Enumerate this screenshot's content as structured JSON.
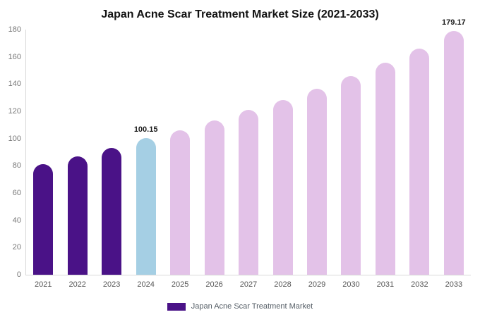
{
  "title": "Japan Acne Scar Treatment Market Size (2021-2033)",
  "legend": {
    "swatch_color": "#4a1287",
    "label": "Japan Acne Scar Treatment Market"
  },
  "colors": {
    "dark_purple": "#4a1287",
    "light_blue": "#a5cfe4",
    "light_pink": "#e3c2e8",
    "axis_line": "#d9d9d9",
    "tick_text": "#777777",
    "category_text": "#555555"
  },
  "chart_data": {
    "type": "bar",
    "title": "Japan Acne Scar Treatment Market Size (2021-2033)",
    "categories": [
      "2021",
      "2022",
      "2023",
      "2024",
      "2025",
      "2026",
      "2027",
      "2028",
      "2029",
      "2030",
      "2031",
      "2032",
      "2033"
    ],
    "values": [
      81,
      87,
      93,
      100.15,
      106,
      113.2,
      120.8,
      128.4,
      136.4,
      145.9,
      155.7,
      166.1,
      179.17
    ],
    "bar_colors": [
      "#4a1287",
      "#4a1287",
      "#4a1287",
      "#a5cfe4",
      "#e3c2e8",
      "#e3c2e8",
      "#e3c2e8",
      "#e3c2e8",
      "#e3c2e8",
      "#e3c2e8",
      "#e3c2e8",
      "#e3c2e8",
      "#e3c2e8"
    ],
    "annotations": [
      {
        "index": 3,
        "text": "100.15"
      },
      {
        "index": 12,
        "text": "179.17"
      }
    ],
    "xlabel": "",
    "ylabel": "",
    "ylim": [
      0,
      180
    ],
    "yticks": [
      0,
      20,
      40,
      60,
      80,
      100,
      120,
      140,
      160,
      180
    ],
    "grid": false,
    "legend_position": "bottom",
    "legend_entries": [
      "Japan Acne Scar Treatment Market"
    ]
  }
}
